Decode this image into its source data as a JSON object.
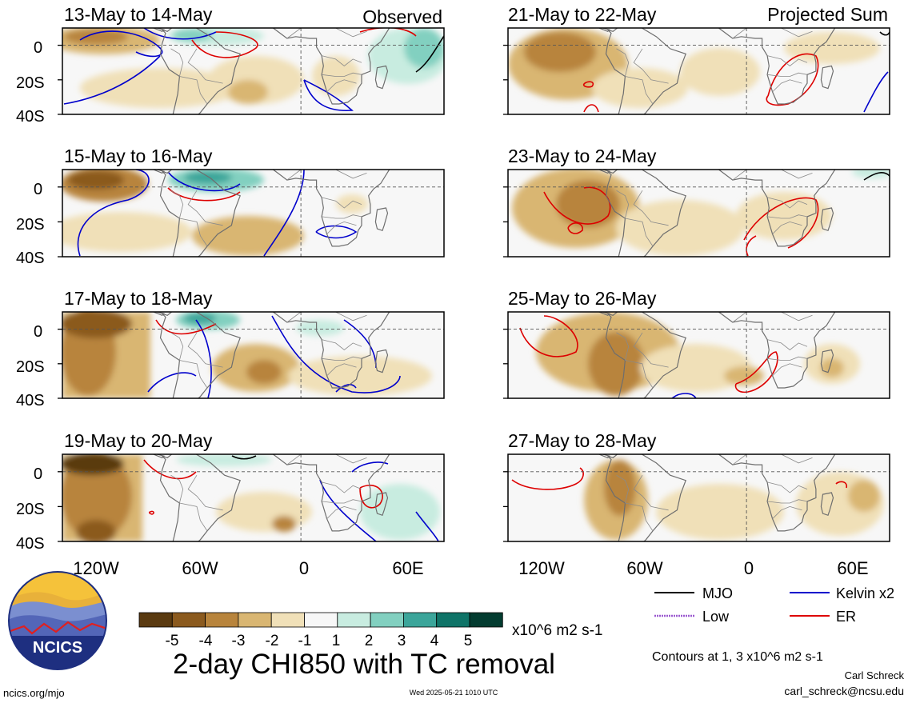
{
  "figure": {
    "title": "2-day CHI850 with TC removal",
    "observed_label": "Observed",
    "projected_label": "Projected Sum",
    "footer_url": "ncics.org/mjo",
    "timestamp": "Wed 2025-05-21 1010 UTC",
    "author": "Carl Schreck",
    "email": "carl_schreck@ncsu.edu",
    "logo_text": "NCICS",
    "contours_note": "Contours at 1, 3 x10^6 m2 s-1"
  },
  "axes": {
    "lat_labels": [
      "0",
      "20S",
      "40S"
    ],
    "lon_labels": [
      "120W",
      "60W",
      "0",
      "60E"
    ]
  },
  "panels": [
    {
      "title": "13-May to 14-May"
    },
    {
      "title": "15-May to 16-May"
    },
    {
      "title": "17-May to 18-May"
    },
    {
      "title": "19-May to 20-May"
    },
    {
      "title": "21-May to 22-May"
    },
    {
      "title": "23-May to 24-May"
    },
    {
      "title": "25-May to 26-May"
    },
    {
      "title": "27-May to 28-May"
    }
  ],
  "colorbar": {
    "ticks": [
      "-5",
      "-4",
      "-3",
      "-2",
      "-1",
      "1",
      "2",
      "3",
      "4",
      "5"
    ],
    "units": "x10^6 m2 s-1",
    "colors": [
      "#5a3a10",
      "#8b5a1e",
      "#b8843c",
      "#d9b672",
      "#f0e0b8",
      "#f7f7f7",
      "#c8ece0",
      "#82d0c0",
      "#3ba59a",
      "#0f7468",
      "#033c30"
    ]
  },
  "legend": [
    {
      "label": "MJO",
      "color": "#000000"
    },
    {
      "label": "Kelvin x2",
      "color": "#0000cc"
    },
    {
      "label": "Low",
      "color": "#9b59d0"
    },
    {
      "label": "ER",
      "color": "#dd0000"
    }
  ]
}
